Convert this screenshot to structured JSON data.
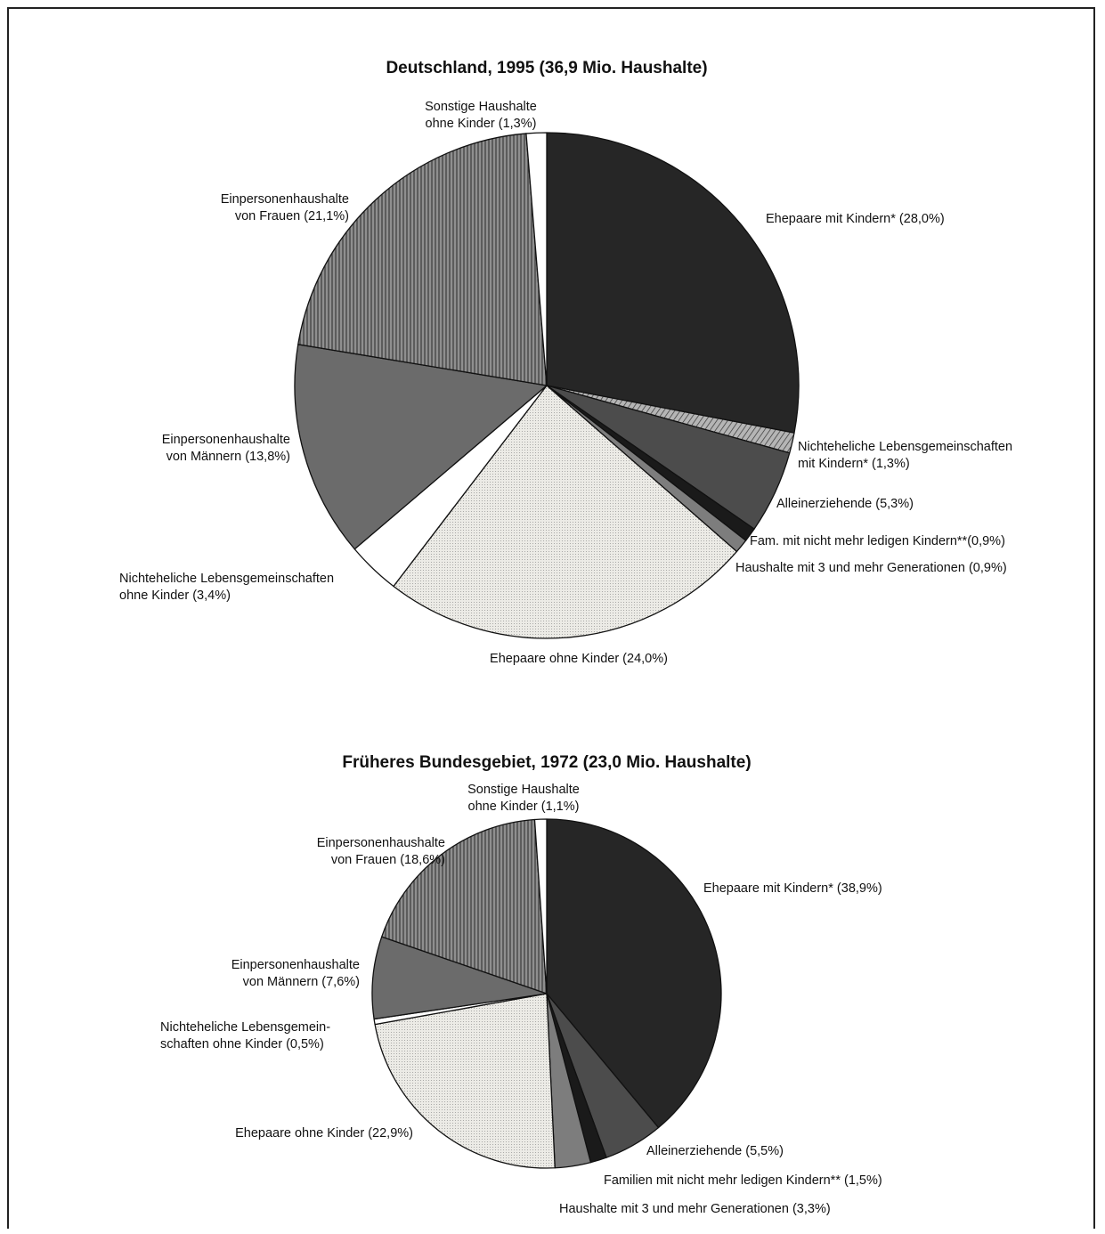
{
  "chart_data": [
    {
      "type": "pie",
      "title": "Deutschland, 1995 (36,9 Mio. Haushalte)",
      "slices": [
        {
          "key": "ehepaare_mit_kindern",
          "value": 28.0,
          "label": [
            "Ehepaare mit Kindern* (28,0%)"
          ],
          "color": "#262626"
        },
        {
          "key": "nel_mit_kindern",
          "value": 1.3,
          "label": [
            "Nichteheliche Lebensgemeinschaften",
            "mit Kindern* (1,3%)"
          ],
          "color": "#9a9a9a"
        },
        {
          "key": "alleinerziehende",
          "value": 5.3,
          "label": [
            "Alleinerziehende (5,3%)"
          ],
          "color": "#4c4c4c"
        },
        {
          "key": "fam_nicht_ledig",
          "value": 0.9,
          "label": [
            "Fam. mit nicht mehr ledigen Kindern**(0,9%)"
          ],
          "color": "#1a1a1a"
        },
        {
          "key": "drei_generationen",
          "value": 0.9,
          "label": [
            "Haushalte mit 3 und mehr Generationen (0,9%)"
          ],
          "color": "#7d7d7d"
        },
        {
          "key": "ehepaare_ohne_kinder",
          "value": 24.0,
          "label": [
            "Ehepaare ohne Kinder (24,0%)"
          ],
          "color": "#e6e6e1"
        },
        {
          "key": "nel_ohne_kinder",
          "value": 3.4,
          "label": [
            "Nichteheliche Lebensgemeinschaften",
            "ohne Kinder (3,4%)"
          ],
          "color": "#ffffff"
        },
        {
          "key": "einpers_maenner",
          "value": 13.8,
          "label": [
            "Einpersonenhaushalte",
            "von Männern (13,8%)"
          ],
          "color": "#6b6b6b"
        },
        {
          "key": "einpers_frauen",
          "value": 21.1,
          "label": [
            "Einpersonenhaushalte",
            "von Frauen (21,1%)"
          ],
          "color": "#8f8f8f"
        },
        {
          "key": "sonstige",
          "value": 1.3,
          "label": [
            "Sonstige Haushalte",
            "ohne Kinder (1,3%)"
          ],
          "color": "#ffffff"
        }
      ]
    },
    {
      "type": "pie",
      "title": "Früheres Bundesgebiet, 1972 (23,0 Mio. Haushalte)",
      "slices": [
        {
          "key": "ehepaare_mit_kindern",
          "value": 38.9,
          "label": [
            "Ehepaare mit Kindern* (38,9%)"
          ],
          "color": "#262626"
        },
        {
          "key": "alleinerziehende",
          "value": 5.5,
          "label": [
            "Alleinerziehende (5,5%)"
          ],
          "color": "#4c4c4c"
        },
        {
          "key": "fam_nicht_ledig",
          "value": 1.5,
          "label": [
            "Familien mit nicht mehr ledigen Kindern** (1,5%)"
          ],
          "color": "#1a1a1a"
        },
        {
          "key": "drei_generationen",
          "value": 3.3,
          "label": [
            "Haushalte mit 3 und mehr Generationen (3,3%)"
          ],
          "color": "#7d7d7d"
        },
        {
          "key": "ehepaare_ohne_kinder",
          "value": 22.9,
          "label": [
            "Ehepaare ohne Kinder (22,9%)"
          ],
          "color": "#e6e6e1"
        },
        {
          "key": "nel_ohne_kinder",
          "value": 0.5,
          "label": [
            "Nichteheliche Lebensgemein-",
            "schaften ohne Kinder (0,5%)"
          ],
          "color": "#ffffff"
        },
        {
          "key": "einpers_maenner",
          "value": 7.6,
          "label": [
            "Einpersonenhaushalte",
            "von Männern (7,6%)"
          ],
          "color": "#6b6b6b"
        },
        {
          "key": "einpers_frauen",
          "value": 18.6,
          "label": [
            "Einpersonenhaushalte",
            "von Frauen (18,6%)"
          ],
          "color": "#8f8f8f"
        },
        {
          "key": "sonstige",
          "value": 1.1,
          "label": [
            "Sonstige Haushalte",
            "ohne Kinder (1,1%)"
          ],
          "color": "#ffffff"
        }
      ]
    }
  ]
}
